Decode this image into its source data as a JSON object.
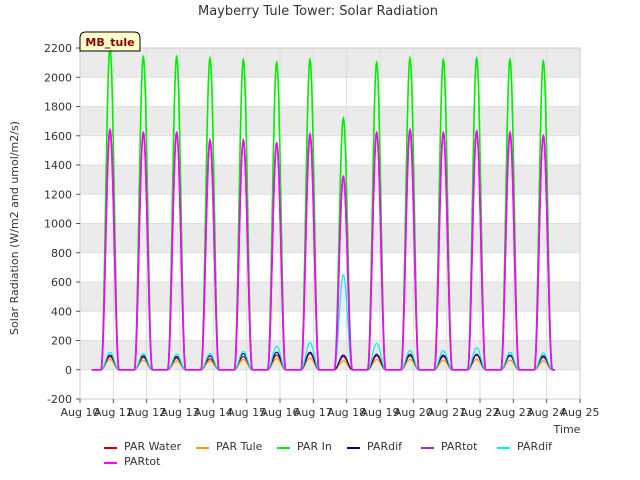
{
  "chart_data": {
    "type": "line",
    "title": "Mayberry Tule Tower: Solar Radiation",
    "xlabel": "Time",
    "ylabel": "Solar Radiation (W/m2 and umol/m2/s)",
    "ylim": [
      -200,
      2200
    ],
    "yticks": [
      -200,
      0,
      200,
      400,
      600,
      800,
      1000,
      1200,
      1400,
      1600,
      1800,
      2000,
      2200
    ],
    "xlim": [
      10,
      25
    ],
    "xticks": [
      {
        "value": 10,
        "label": "Aug 10"
      },
      {
        "value": 11,
        "label": "Aug 11"
      },
      {
        "value": 12,
        "label": "Aug 12"
      },
      {
        "value": 13,
        "label": "Aug 13"
      },
      {
        "value": 14,
        "label": "Aug 14"
      },
      {
        "value": 15,
        "label": "Aug 15"
      },
      {
        "value": 16,
        "label": "Aug 16"
      },
      {
        "value": 17,
        "label": "Aug 17"
      },
      {
        "value": 18,
        "label": "Aug 18"
      },
      {
        "value": 19,
        "label": "Aug 19"
      },
      {
        "value": 20,
        "label": "Aug 20"
      },
      {
        "value": 21,
        "label": "Aug 21"
      },
      {
        "value": 22,
        "label": "Aug 22"
      },
      {
        "value": 23,
        "label": "Aug 23"
      },
      {
        "value": 24,
        "label": "Aug 24"
      },
      {
        "value": 25,
        "label": "Aug 25"
      }
    ],
    "grid": true,
    "station_badge": "MB_tule",
    "data_start_day": 10.35,
    "data_end_day": 24.25,
    "day_offsets": [
      11,
      12,
      13,
      14,
      15,
      16,
      17,
      18,
      19,
      20,
      21,
      22,
      23,
      24
    ],
    "series": [
      {
        "name": "PAR Water",
        "color": "#cc0000",
        "daily_peaks": [
          90,
          85,
          80,
          75,
          90,
          100,
          110,
          90,
          95,
          95,
          90,
          100,
          95,
          85
        ]
      },
      {
        "name": "PAR Tule",
        "color": "#ff9900",
        "daily_peaks": [
          70,
          65,
          60,
          60,
          70,
          75,
          80,
          60,
          70,
          70,
          65,
          70,
          65,
          60
        ]
      },
      {
        "name": "PAR In",
        "color": "#00ee00",
        "daily_peaks": [
          2200,
          2140,
          2140,
          2130,
          2120,
          2100,
          2120,
          1720,
          2100,
          2130,
          2120,
          2130,
          2120,
          2110
        ]
      },
      {
        "name": "PARdif",
        "color": "#00008b",
        "daily_peaks": [
          100,
          95,
          90,
          95,
          110,
          120,
          120,
          100,
          105,
          105,
          100,
          105,
          100,
          95
        ]
      },
      {
        "name": "PARtot",
        "color": "#9932cc",
        "daily_peaks": [
          1640,
          1620,
          1620,
          1570,
          1570,
          1550,
          1610,
          1320,
          1620,
          1640,
          1620,
          1630,
          1620,
          1600
        ]
      },
      {
        "name": "PARdif",
        "color": "#00eeee",
        "daily_peaks": [
          120,
          110,
          105,
          110,
          125,
          160,
          185,
          650,
          180,
          130,
          130,
          150,
          120,
          115
        ]
      },
      {
        "name": "PARtot",
        "color": "#ff00ff",
        "daily_peaks": [
          1640,
          1620,
          1620,
          1570,
          1570,
          1550,
          1610,
          1320,
          1620,
          1640,
          1620,
          1630,
          1620,
          1600
        ]
      }
    ]
  }
}
